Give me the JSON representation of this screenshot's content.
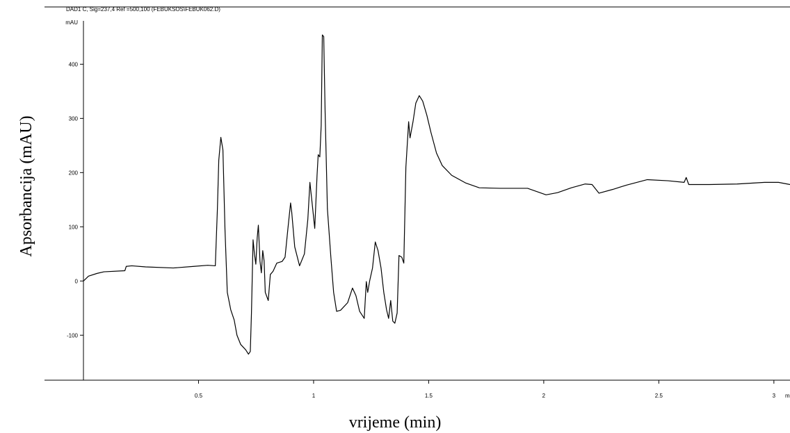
{
  "chart_data": {
    "type": "line",
    "header": "DAD1 C, Sig=237,4 Ref =500,100 (FEBUKSOS\\FEBUK062.D)",
    "y_unit": "mAU",
    "x_unit": "min",
    "x_label": "vrijeme (min)",
    "y_label": "Apsorbancija (mAU)",
    "color": "#000000",
    "xlim": [
      0,
      3.07
    ],
    "ylim": [
      -183,
      480
    ],
    "xticks": [
      0.5,
      1,
      1.5,
      2,
      2.5,
      3
    ],
    "yticks": [
      -100,
      0,
      100,
      200,
      300,
      400
    ],
    "x": [
      0,
      0.022,
      0.059,
      0.089,
      0.18,
      0.186,
      0.21,
      0.27,
      0.39,
      0.48,
      0.54,
      0.573,
      0.582,
      0.588,
      0.597,
      0.606,
      0.615,
      0.625,
      0.64,
      0.655,
      0.667,
      0.683,
      0.705,
      0.717,
      0.725,
      0.73,
      0.737,
      0.743,
      0.749,
      0.755,
      0.76,
      0.767,
      0.773,
      0.779,
      0.785,
      0.79,
      0.803,
      0.812,
      0.824,
      0.84,
      0.863,
      0.876,
      0.888,
      0.9,
      0.905,
      0.918,
      0.939,
      0.96,
      0.975,
      0.984,
      0.993,
      1.005,
      1.015,
      1.02,
      1.027,
      1.033,
      1.038,
      1.044,
      1.05,
      1.06,
      1.075,
      1.087,
      1.1,
      1.117,
      1.148,
      1.169,
      1.184,
      1.2,
      1.22,
      1.229,
      1.235,
      1.244,
      1.256,
      1.268,
      1.28,
      1.293,
      1.305,
      1.317,
      1.326,
      1.335,
      1.344,
      1.353,
      1.363,
      1.371,
      1.383,
      1.392,
      1.401,
      1.413,
      1.419,
      1.432,
      1.444,
      1.459,
      1.474,
      1.492,
      1.51,
      1.534,
      1.559,
      1.6,
      1.66,
      1.72,
      1.81,
      1.93,
      2.01,
      2.06,
      2.12,
      2.18,
      2.21,
      2.24,
      2.3,
      2.36,
      2.45,
      2.54,
      2.61,
      2.619,
      2.63,
      2.72,
      2.84,
      2.96,
      3.02,
      3.07
    ],
    "values": [
      0,
      9,
      14,
      17,
      19,
      27,
      28,
      26,
      24,
      27,
      29,
      28,
      133,
      223,
      265,
      242,
      95,
      -21,
      -53,
      -72,
      -100,
      -117,
      -127,
      -135,
      -130,
      -59,
      76,
      50,
      31,
      80,
      103,
      37,
      15,
      56,
      37,
      -21,
      -36,
      12,
      18,
      33,
      36,
      44,
      95,
      144,
      127,
      63,
      28,
      50,
      114,
      182,
      146,
      97,
      195,
      233,
      229,
      287,
      454,
      451,
      313,
      133,
      44,
      -21,
      -56,
      -54,
      -40,
      -13,
      -27,
      -56,
      -69,
      -1,
      -21,
      1,
      24,
      72,
      56,
      24,
      -21,
      -53,
      -69,
      -36,
      -74,
      -78,
      -59,
      47,
      44,
      33,
      210,
      294,
      264,
      294,
      328,
      342,
      332,
      306,
      274,
      236,
      213,
      195,
      181,
      172,
      171,
      171,
      159,
      163,
      172,
      179,
      178,
      162,
      169,
      177,
      187,
      185,
      182,
      191,
      178,
      178,
      179,
      182,
      182,
      178
    ]
  }
}
